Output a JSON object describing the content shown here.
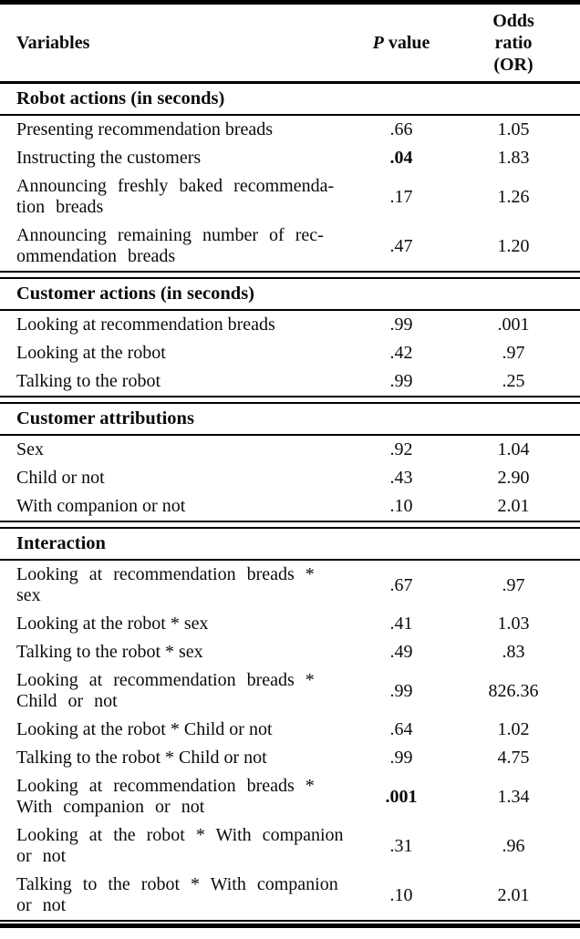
{
  "colors": {
    "background": "#ffffff",
    "text": "#0b0b0b",
    "rule": "#000000"
  },
  "table": {
    "header": {
      "variables": "Variables",
      "p_italic": "P",
      "p_rest": "value",
      "odds": "Odds\nratio\n(OR)"
    },
    "sections": [
      {
        "title": "Robot actions (in seconds)",
        "rows": [
          {
            "variable": "Presenting recommendation breads",
            "p": ".66",
            "or": "1.05"
          },
          {
            "variable": "Instructing the customers",
            "p": ".04",
            "p_bold": true,
            "or": "1.83"
          },
          {
            "variable": "Announcing freshly baked recommenda-\ntion breads",
            "p": ".17",
            "or": "1.26"
          },
          {
            "variable": "Announcing remaining number of rec-\nommendation breads",
            "p": ".47",
            "or": "1.20"
          }
        ]
      },
      {
        "title": "Customer actions (in seconds)",
        "rows": [
          {
            "variable": "Looking at recommendation breads",
            "p": ".99",
            "or": ".001"
          },
          {
            "variable": "Looking at the robot",
            "p": ".42",
            "or": ".97"
          },
          {
            "variable": "Talking to the robot",
            "p": ".99",
            "or": ".25"
          }
        ]
      },
      {
        "title": "Customer attributions",
        "rows": [
          {
            "variable": "Sex",
            "p": ".92",
            "or": "1.04"
          },
          {
            "variable": "Child or not",
            "p": ".43",
            "or": "2.90"
          },
          {
            "variable": "With companion or not",
            "p": ".10",
            "or": "2.01"
          }
        ]
      },
      {
        "title": "Interaction",
        "rows": [
          {
            "variable": "Looking at recommendation breads *\nsex",
            "p": ".67",
            "or": ".97"
          },
          {
            "variable": "Looking at the robot * sex",
            "p": ".41",
            "or": "1.03"
          },
          {
            "variable": "Talking to the robot * sex",
            "p": ".49",
            "or": ".83"
          },
          {
            "variable": "Looking at recommendation breads *\nChild or not",
            "p": ".99",
            "or": "826.36"
          },
          {
            "variable": "Looking at the robot * Child or not",
            "p": ".64",
            "or": "1.02"
          },
          {
            "variable": "Talking to the robot * Child or not",
            "p": ".99",
            "or": "4.75"
          },
          {
            "variable": "Looking at recommendation breads *\nWith companion or not",
            "p": ".001",
            "p_bold": true,
            "or": "1.34"
          },
          {
            "variable": "Looking at the robot * With companion\nor not",
            "p": ".31",
            "or": ".96"
          },
          {
            "variable": "Talking to the robot * With companion\nor not",
            "p": ".10",
            "or": "2.01"
          }
        ]
      }
    ]
  }
}
